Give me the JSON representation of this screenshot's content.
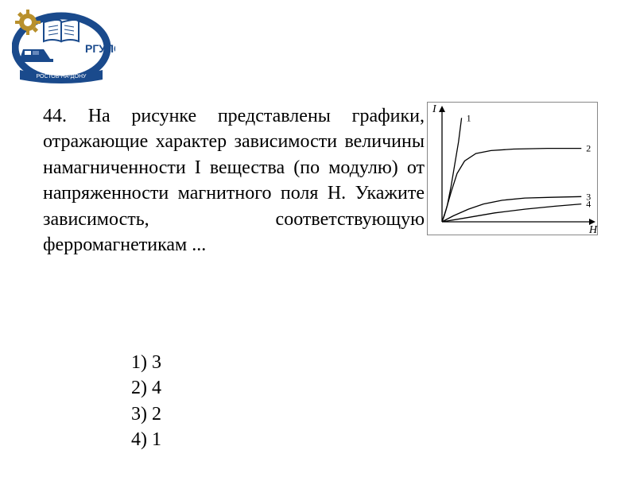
{
  "logo": {
    "text_abbrev": "РГУПС",
    "text_bottom": "РОСТОВ-НА-ДОНУ",
    "colors": {
      "blue": "#1a4a8c",
      "gold": "#b8902c",
      "white": "#ffffff"
    }
  },
  "question": {
    "number": "44.",
    "text": "На рисунке представлены графики, отражающие характер зависимости величины намагниченности I вещества (по модулю) от напряженности магнитного поля H. Укажите зависимость, соответствующую ферромагнетикам ..."
  },
  "chart": {
    "type": "line",
    "y_axis_label": "I",
    "x_axis_label": "H",
    "background_color": "#ffffff",
    "axis_color": "#000000",
    "line_color": "#000000",
    "line_width": 1.3,
    "label_fontsize": 14,
    "curves": [
      {
        "label": "1",
        "points": [
          [
            0,
            0
          ],
          [
            3,
            8
          ],
          [
            7,
            22
          ],
          [
            12,
            48
          ],
          [
            17,
            78
          ],
          [
            22,
            108
          ],
          [
            26,
            140
          ]
        ]
      },
      {
        "label": "2",
        "points": [
          [
            0,
            0
          ],
          [
            5,
            15
          ],
          [
            12,
            40
          ],
          [
            20,
            65
          ],
          [
            30,
            82
          ],
          [
            45,
            92
          ],
          [
            65,
            96
          ],
          [
            95,
            98
          ],
          [
            140,
            99
          ],
          [
            185,
            99
          ]
        ]
      },
      {
        "label": "3",
        "points": [
          [
            0,
            0
          ],
          [
            15,
            8
          ],
          [
            35,
            17
          ],
          [
            55,
            24
          ],
          [
            80,
            29
          ],
          [
            110,
            32
          ],
          [
            145,
            33
          ],
          [
            185,
            34
          ]
        ]
      },
      {
        "label": "4",
        "points": [
          [
            0,
            0
          ],
          [
            30,
            5
          ],
          [
            70,
            12
          ],
          [
            110,
            17
          ],
          [
            150,
            21
          ],
          [
            185,
            24
          ]
        ]
      }
    ]
  },
  "answers": {
    "items": [
      {
        "num": "1)",
        "val": "3"
      },
      {
        "num": "2)",
        "val": "4"
      },
      {
        "num": "3)",
        "val": "2"
      },
      {
        "num": "4)",
        "val": "1"
      }
    ]
  }
}
